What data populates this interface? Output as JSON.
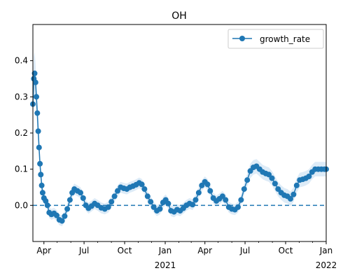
{
  "chart_data": {
    "type": "line",
    "title": "OH",
    "xlabel": "",
    "ylabel": "",
    "legend": {
      "position": "upper-right",
      "label": "growth_rate"
    },
    "colors": {
      "series": "#1f77b4",
      "band": "#cfe2f3",
      "zero_line": "#1f77b4"
    },
    "xlim": [
      "2020-03-07",
      "2022-01-01"
    ],
    "ylim": [
      -0.1,
      0.5
    ],
    "xticks": [
      {
        "date": "2020-04-01",
        "label": "Apr",
        "sublabel": ""
      },
      {
        "date": "2020-07-01",
        "label": "Jul",
        "sublabel": ""
      },
      {
        "date": "2020-10-01",
        "label": "Oct",
        "sublabel": ""
      },
      {
        "date": "2021-01-01",
        "label": "Jan",
        "sublabel": "2021"
      },
      {
        "date": "2021-04-01",
        "label": "Apr",
        "sublabel": ""
      },
      {
        "date": "2021-07-01",
        "label": "Jul",
        "sublabel": ""
      },
      {
        "date": "2021-10-01",
        "label": "Oct",
        "sublabel": ""
      },
      {
        "date": "2022-01-01",
        "label": "Jan",
        "sublabel": "2022"
      }
    ],
    "yticks": [
      {
        "value": 0.0,
        "label": "0.0"
      },
      {
        "value": 0.1,
        "label": "0.1"
      },
      {
        "value": 0.2,
        "label": "0.2"
      },
      {
        "value": 0.3,
        "label": "0.3"
      },
      {
        "value": 0.4,
        "label": "0.4"
      }
    ],
    "reference_line": {
      "y": 0.0,
      "style": "dashed"
    },
    "series": [
      {
        "name": "growth_rate",
        "points": [
          {
            "x": "2020-03-07",
            "y": 0.28,
            "band": 0.05
          },
          {
            "x": "2020-03-09",
            "y": 0.35,
            "band": 0.06
          },
          {
            "x": "2020-03-11",
            "y": 0.365,
            "band": 0.06
          },
          {
            "x": "2020-03-13",
            "y": 0.34,
            "band": 0.05
          },
          {
            "x": "2020-03-15",
            "y": 0.3,
            "band": 0.045
          },
          {
            "x": "2020-03-17",
            "y": 0.255,
            "band": 0.04
          },
          {
            "x": "2020-03-19",
            "y": 0.205,
            "band": 0.035
          },
          {
            "x": "2020-03-21",
            "y": 0.16,
            "band": 0.03
          },
          {
            "x": "2020-03-23",
            "y": 0.115,
            "band": 0.025
          },
          {
            "x": "2020-03-25",
            "y": 0.085,
            "band": 0.02
          },
          {
            "x": "2020-03-27",
            "y": 0.055,
            "band": 0.018
          },
          {
            "x": "2020-03-29",
            "y": 0.035,
            "band": 0.015
          },
          {
            "x": "2020-04-01",
            "y": 0.02,
            "band": 0.015
          },
          {
            "x": "2020-04-05",
            "y": 0.012,
            "band": 0.015
          },
          {
            "x": "2020-04-09",
            "y": 0.0,
            "band": 0.015
          },
          {
            "x": "2020-04-13",
            "y": -0.02,
            "band": 0.015
          },
          {
            "x": "2020-04-18",
            "y": -0.025,
            "band": 0.015
          },
          {
            "x": "2020-04-24",
            "y": -0.022,
            "band": 0.015
          },
          {
            "x": "2020-04-30",
            "y": -0.028,
            "band": 0.015
          },
          {
            "x": "2020-05-06",
            "y": -0.04,
            "band": 0.015
          },
          {
            "x": "2020-05-12",
            "y": -0.043,
            "band": 0.015
          },
          {
            "x": "2020-05-18",
            "y": -0.03,
            "band": 0.015
          },
          {
            "x": "2020-05-24",
            "y": -0.01,
            "band": 0.015
          },
          {
            "x": "2020-05-30",
            "y": 0.015,
            "band": 0.015
          },
          {
            "x": "2020-06-04",
            "y": 0.035,
            "band": 0.015
          },
          {
            "x": "2020-06-09",
            "y": 0.045,
            "band": 0.015
          },
          {
            "x": "2020-06-16",
            "y": 0.04,
            "band": 0.015
          },
          {
            "x": "2020-06-23",
            "y": 0.035,
            "band": 0.015
          },
          {
            "x": "2020-06-29",
            "y": 0.02,
            "band": 0.015
          },
          {
            "x": "2020-07-05",
            "y": 0.0,
            "band": 0.015
          },
          {
            "x": "2020-07-11",
            "y": -0.008,
            "band": 0.015
          },
          {
            "x": "2020-07-18",
            "y": -0.002,
            "band": 0.015
          },
          {
            "x": "2020-07-25",
            "y": 0.005,
            "band": 0.015
          },
          {
            "x": "2020-08-01",
            "y": 0.0,
            "band": 0.015
          },
          {
            "x": "2020-08-09",
            "y": -0.007,
            "band": 0.015
          },
          {
            "x": "2020-08-17",
            "y": -0.01,
            "band": 0.015
          },
          {
            "x": "2020-08-25",
            "y": -0.005,
            "band": 0.015
          },
          {
            "x": "2020-09-01",
            "y": 0.01,
            "band": 0.015
          },
          {
            "x": "2020-09-08",
            "y": 0.025,
            "band": 0.015
          },
          {
            "x": "2020-09-15",
            "y": 0.04,
            "band": 0.015
          },
          {
            "x": "2020-09-22",
            "y": 0.05,
            "band": 0.015
          },
          {
            "x": "2020-09-29",
            "y": 0.047,
            "band": 0.015
          },
          {
            "x": "2020-10-06",
            "y": 0.045,
            "band": 0.015
          },
          {
            "x": "2020-10-13",
            "y": 0.05,
            "band": 0.015
          },
          {
            "x": "2020-10-20",
            "y": 0.053,
            "band": 0.015
          },
          {
            "x": "2020-10-27",
            "y": 0.057,
            "band": 0.015
          },
          {
            "x": "2020-11-03",
            "y": 0.062,
            "band": 0.015
          },
          {
            "x": "2020-11-09",
            "y": 0.058,
            "band": 0.015
          },
          {
            "x": "2020-11-15",
            "y": 0.045,
            "band": 0.015
          },
          {
            "x": "2020-11-22",
            "y": 0.025,
            "band": 0.015
          },
          {
            "x": "2020-11-29",
            "y": 0.01,
            "band": 0.015
          },
          {
            "x": "2020-12-06",
            "y": -0.005,
            "band": 0.015
          },
          {
            "x": "2020-12-13",
            "y": -0.015,
            "band": 0.015
          },
          {
            "x": "2020-12-20",
            "y": -0.01,
            "band": 0.015
          },
          {
            "x": "2020-12-27",
            "y": 0.008,
            "band": 0.015
          },
          {
            "x": "2021-01-02",
            "y": 0.015,
            "band": 0.015
          },
          {
            "x": "2021-01-08",
            "y": 0.005,
            "band": 0.015
          },
          {
            "x": "2021-01-14",
            "y": -0.015,
            "band": 0.015
          },
          {
            "x": "2021-01-21",
            "y": -0.018,
            "band": 0.015
          },
          {
            "x": "2021-01-28",
            "y": -0.012,
            "band": 0.015
          },
          {
            "x": "2021-02-04",
            "y": -0.015,
            "band": 0.015
          },
          {
            "x": "2021-02-11",
            "y": -0.008,
            "band": 0.015
          },
          {
            "x": "2021-02-18",
            "y": 0.0,
            "band": 0.015
          },
          {
            "x": "2021-02-25",
            "y": 0.005,
            "band": 0.015
          },
          {
            "x": "2021-03-04",
            "y": 0.002,
            "band": 0.015
          },
          {
            "x": "2021-03-11",
            "y": 0.015,
            "band": 0.015
          },
          {
            "x": "2021-03-18",
            "y": 0.035,
            "band": 0.015
          },
          {
            "x": "2021-03-25",
            "y": 0.055,
            "band": 0.015
          },
          {
            "x": "2021-04-01",
            "y": 0.065,
            "band": 0.015
          },
          {
            "x": "2021-04-07",
            "y": 0.058,
            "band": 0.015
          },
          {
            "x": "2021-04-13",
            "y": 0.04,
            "band": 0.015
          },
          {
            "x": "2021-04-20",
            "y": 0.02,
            "band": 0.015
          },
          {
            "x": "2021-04-27",
            "y": 0.012,
            "band": 0.015
          },
          {
            "x": "2021-05-04",
            "y": 0.018,
            "band": 0.015
          },
          {
            "x": "2021-05-11",
            "y": 0.025,
            "band": 0.015
          },
          {
            "x": "2021-05-18",
            "y": 0.015,
            "band": 0.015
          },
          {
            "x": "2021-05-25",
            "y": -0.005,
            "band": 0.015
          },
          {
            "x": "2021-06-01",
            "y": -0.01,
            "band": 0.015
          },
          {
            "x": "2021-06-08",
            "y": -0.012,
            "band": 0.015
          },
          {
            "x": "2021-06-15",
            "y": -0.005,
            "band": 0.015
          },
          {
            "x": "2021-06-22",
            "y": 0.015,
            "band": 0.015
          },
          {
            "x": "2021-06-29",
            "y": 0.045,
            "band": 0.015
          },
          {
            "x": "2021-07-06",
            "y": 0.07,
            "band": 0.018
          },
          {
            "x": "2021-07-13",
            "y": 0.095,
            "band": 0.02
          },
          {
            "x": "2021-07-20",
            "y": 0.105,
            "band": 0.02
          },
          {
            "x": "2021-07-27",
            "y": 0.108,
            "band": 0.02
          },
          {
            "x": "2021-08-03",
            "y": 0.1,
            "band": 0.02
          },
          {
            "x": "2021-08-10",
            "y": 0.092,
            "band": 0.02
          },
          {
            "x": "2021-08-17",
            "y": 0.088,
            "band": 0.02
          },
          {
            "x": "2021-08-24",
            "y": 0.085,
            "band": 0.02
          },
          {
            "x": "2021-08-31",
            "y": 0.075,
            "band": 0.02
          },
          {
            "x": "2021-09-07",
            "y": 0.06,
            "band": 0.02
          },
          {
            "x": "2021-09-14",
            "y": 0.045,
            "band": 0.02
          },
          {
            "x": "2021-09-21",
            "y": 0.035,
            "band": 0.02
          },
          {
            "x": "2021-09-28",
            "y": 0.028,
            "band": 0.02
          },
          {
            "x": "2021-10-05",
            "y": 0.025,
            "band": 0.02
          },
          {
            "x": "2021-10-12",
            "y": 0.018,
            "band": 0.02
          },
          {
            "x": "2021-10-19",
            "y": 0.03,
            "band": 0.02
          },
          {
            "x": "2021-10-26",
            "y": 0.055,
            "band": 0.02
          },
          {
            "x": "2021-11-02",
            "y": 0.07,
            "band": 0.02
          },
          {
            "x": "2021-11-09",
            "y": 0.072,
            "band": 0.02
          },
          {
            "x": "2021-11-16",
            "y": 0.075,
            "band": 0.02
          },
          {
            "x": "2021-11-23",
            "y": 0.08,
            "band": 0.02
          },
          {
            "x": "2021-11-30",
            "y": 0.092,
            "band": 0.02
          },
          {
            "x": "2021-12-07",
            "y": 0.1,
            "band": 0.02
          },
          {
            "x": "2021-12-14",
            "y": 0.1,
            "band": 0.02
          },
          {
            "x": "2021-12-21",
            "y": 0.1,
            "band": 0.02
          },
          {
            "x": "2021-12-28",
            "y": 0.1,
            "band": 0.02
          },
          {
            "x": "2022-01-01",
            "y": 0.1,
            "band": 0.02
          }
        ]
      }
    ]
  }
}
